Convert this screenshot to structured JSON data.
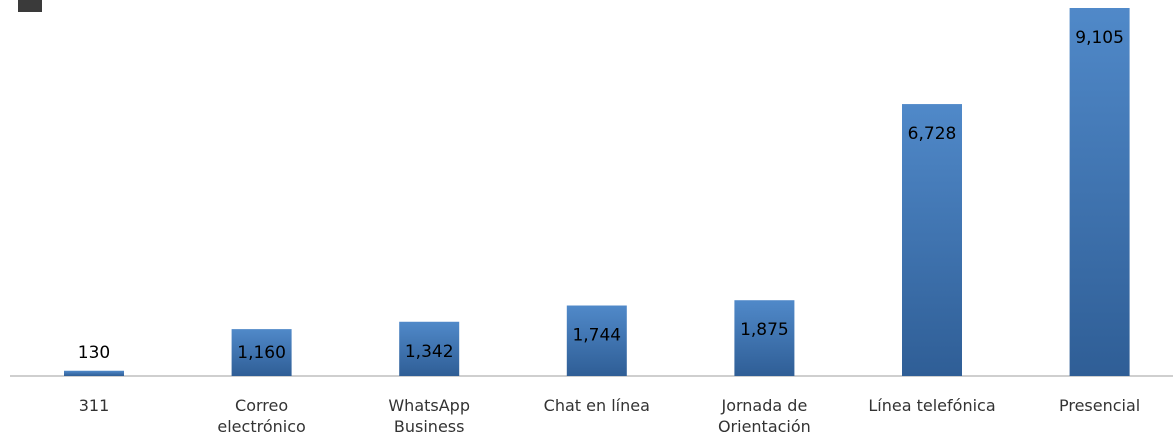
{
  "chart_data": {
    "type": "bar",
    "categories": [
      "311",
      "Correo\nelectrónico",
      "WhatsApp\nBusiness",
      "Chat en línea",
      "Jornada de\nOrientación",
      "Línea telefónica",
      "Presencial"
    ],
    "values": [
      130,
      1160,
      1342,
      1744,
      1875,
      6728,
      9105
    ],
    "value_labels": [
      "130",
      "1,160",
      "1,342",
      "1,744",
      "1,875",
      "6,728",
      "9,105"
    ],
    "color": "#4a7fc0"
  }
}
